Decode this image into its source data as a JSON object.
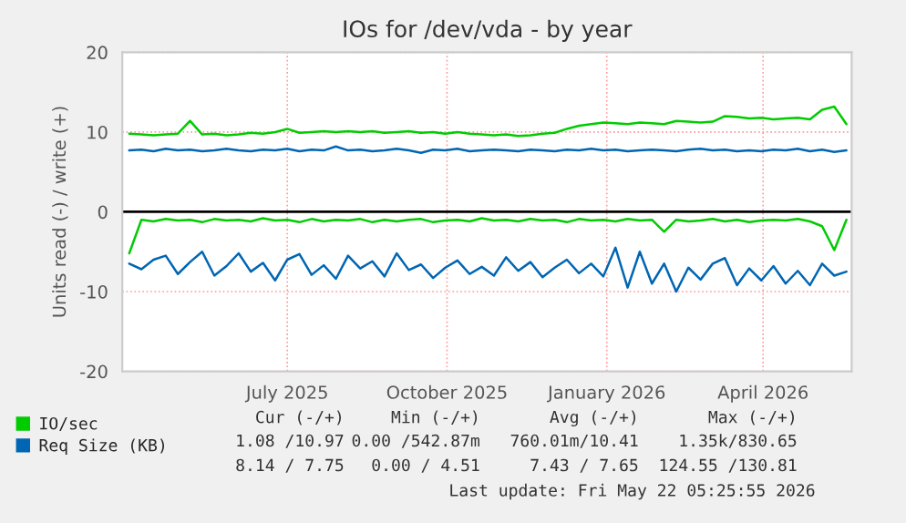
{
  "chart_data": {
    "type": "line",
    "title": "IOs for /dev/vda - by year",
    "ylabel": "Units read (-) / write (+)",
    "x": [
      "2025-04-01",
      "2025-04-08",
      "2025-04-15",
      "2025-04-22",
      "2025-04-29",
      "2025-05-06",
      "2025-05-13",
      "2025-05-20",
      "2025-05-27",
      "2025-06-03",
      "2025-06-10",
      "2025-06-17",
      "2025-06-24",
      "2025-07-01",
      "2025-07-08",
      "2025-07-15",
      "2025-07-22",
      "2025-07-29",
      "2025-08-05",
      "2025-08-12",
      "2025-08-19",
      "2025-08-26",
      "2025-09-02",
      "2025-09-09",
      "2025-09-16",
      "2025-09-23",
      "2025-09-30",
      "2025-10-07",
      "2025-10-14",
      "2025-10-21",
      "2025-10-28",
      "2025-11-04",
      "2025-11-11",
      "2025-11-18",
      "2025-11-25",
      "2025-12-02",
      "2025-12-09",
      "2025-12-16",
      "2025-12-23",
      "2025-12-30",
      "2026-01-06",
      "2026-01-13",
      "2026-01-20",
      "2026-01-27",
      "2026-02-03",
      "2026-02-10",
      "2026-02-17",
      "2026-02-24",
      "2026-03-03",
      "2026-03-10",
      "2026-03-17",
      "2026-03-24",
      "2026-03-31",
      "2026-04-07",
      "2026-04-14",
      "2026-04-21",
      "2026-04-28",
      "2026-05-05",
      "2026-05-12",
      "2026-05-19"
    ],
    "series": [
      {
        "name": "IO/sec",
        "color": "#00cc00",
        "values": [
          9.8,
          9.7,
          9.6,
          9.7,
          9.8,
          11.4,
          9.7,
          9.8,
          9.6,
          9.7,
          9.9,
          9.8,
          10.0,
          10.4,
          9.9,
          10.0,
          10.1,
          10.0,
          10.1,
          10.0,
          10.1,
          9.9,
          10.0,
          10.1,
          9.9,
          10.0,
          9.8,
          10.0,
          9.8,
          9.7,
          9.6,
          9.7,
          9.5,
          9.6,
          9.8,
          9.9,
          10.4,
          10.8,
          11.0,
          11.2,
          11.1,
          11.0,
          11.2,
          11.1,
          11.0,
          11.4,
          11.3,
          11.2,
          11.3,
          12.0,
          11.9,
          11.7,
          11.8,
          11.6,
          11.7,
          11.8,
          11.6,
          12.8,
          13.2,
          11.0
        ]
      },
      {
        "color": "#00cc00",
        "values": [
          -5.2,
          -1.0,
          -1.2,
          -0.9,
          -1.1,
          -1.0,
          -1.3,
          -0.9,
          -1.1,
          -1.0,
          -1.2,
          -0.8,
          -1.1,
          -1.0,
          -1.3,
          -0.9,
          -1.2,
          -1.0,
          -1.1,
          -0.9,
          -1.3,
          -1.0,
          -1.2,
          -1.0,
          -0.9,
          -1.3,
          -1.1,
          -1.0,
          -1.2,
          -0.8,
          -1.1,
          -1.0,
          -1.2,
          -0.9,
          -1.1,
          -1.0,
          -1.3,
          -0.9,
          -1.1,
          -1.0,
          -1.2,
          -0.9,
          -1.1,
          -1.0,
          -2.5,
          -1.0,
          -1.2,
          -1.1,
          -0.9,
          -1.2,
          -1.0,
          -1.3,
          -1.1,
          -1.0,
          -1.1,
          -0.9,
          -1.2,
          -1.8,
          -4.8,
          -1.0
        ]
      },
      {
        "name": "Req Size (KB)",
        "color": "#0066b3",
        "values": [
          7.7,
          7.8,
          7.6,
          7.9,
          7.7,
          7.8,
          7.6,
          7.7,
          7.9,
          7.7,
          7.6,
          7.8,
          7.7,
          7.9,
          7.6,
          7.8,
          7.7,
          8.2,
          7.7,
          7.8,
          7.6,
          7.7,
          7.9,
          7.7,
          7.4,
          7.8,
          7.7,
          7.9,
          7.6,
          7.7,
          7.8,
          7.7,
          7.6,
          7.8,
          7.7,
          7.6,
          7.8,
          7.7,
          7.9,
          7.7,
          7.8,
          7.6,
          7.7,
          7.8,
          7.7,
          7.6,
          7.8,
          7.9,
          7.7,
          7.8,
          7.6,
          7.7,
          7.6,
          7.8,
          7.7,
          7.9,
          7.6,
          7.8,
          7.5,
          7.7
        ]
      },
      {
        "color": "#0066b3",
        "values": [
          -6.5,
          -7.2,
          -6.0,
          -5.5,
          -7.8,
          -6.3,
          -5.0,
          -8.0,
          -6.8,
          -5.2,
          -7.5,
          -6.4,
          -8.6,
          -6.0,
          -5.3,
          -7.9,
          -6.7,
          -8.4,
          -5.5,
          -7.1,
          -6.2,
          -8.1,
          -5.2,
          -7.3,
          -6.6,
          -8.3,
          -7.0,
          -6.1,
          -7.8,
          -6.9,
          -8.0,
          -5.7,
          -7.4,
          -6.3,
          -8.2,
          -7.0,
          -6.0,
          -7.7,
          -6.5,
          -8.1,
          -4.5,
          -9.5,
          -5.0,
          -9.0,
          -6.5,
          -10.0,
          -7.0,
          -8.5,
          -6.5,
          -5.8,
          -9.2,
          -7.1,
          -8.6,
          -6.8,
          -9.0,
          -7.4,
          -9.2,
          -6.5,
          -8.0,
          -7.5
        ]
      }
    ],
    "xlim": [
      "2025-03-28",
      "2026-05-22"
    ],
    "xticks": [
      {
        "value": "2025-07-01",
        "label": "July 2025"
      },
      {
        "value": "2025-10-01",
        "label": "October 2025"
      },
      {
        "value": "2026-01-01",
        "label": "January 2026"
      },
      {
        "value": "2026-04-01",
        "label": "April 2026"
      }
    ],
    "ylim": [
      -20,
      20
    ],
    "yticks": [
      -20,
      -10,
      0,
      10,
      20
    ],
    "ref_lines": [
      {
        "axis": "y",
        "value": 0,
        "color": "#000000"
      }
    ],
    "grid": true,
    "legend": "bottom left",
    "marker": "none",
    "line_style": "solid",
    "annotations": [
      "Cur (-/+)",
      "Min (-/+)",
      "Avg (-/+)",
      "Max (-/+)",
      "1.08 /10.97",
      "0.00 /542.87m",
      "760.01m/10.41",
      "1.35k/830.65",
      "8.14 / 7.75",
      "0.00 / 4.51",
      "7.43 / 7.65",
      "124.55 /130.81",
      "Last update: Fri May 22 05:25:55 2026"
    ]
  }
}
